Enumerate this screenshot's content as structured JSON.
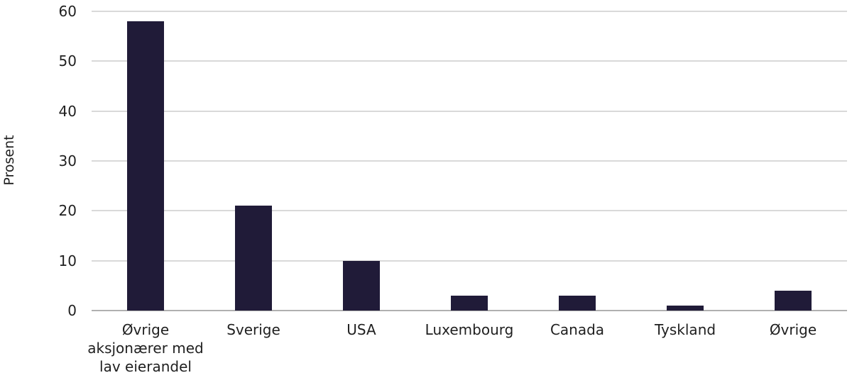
{
  "chart_data": {
    "type": "bar",
    "categories": [
      "Øvrige\naksjonærer med\nlav eierandel",
      "Sverige",
      "USA",
      "Luxembourg",
      "Canada",
      "Tyskland",
      "Øvrige"
    ],
    "values": [
      58,
      21,
      10,
      3,
      3,
      1,
      4
    ],
    "title": "",
    "xlabel": "",
    "ylabel": "Prosent",
    "ylim": [
      0,
      60
    ],
    "yticks": [
      0,
      10,
      20,
      30,
      40,
      50,
      60
    ],
    "grid": true,
    "legend_position": "none",
    "bar_color": "#201b38",
    "gridline_color": "#d9d9d9",
    "baseline_color": "#b0b0b0",
    "text_color": "#1f1f1f",
    "background_color": "#ffffff"
  }
}
